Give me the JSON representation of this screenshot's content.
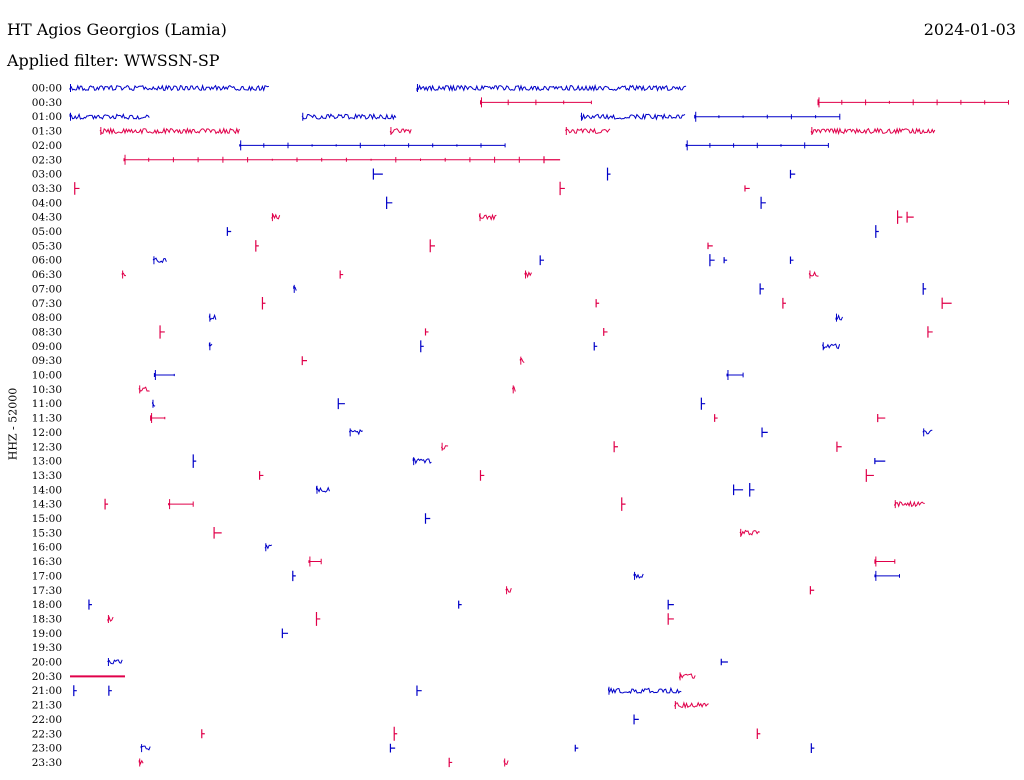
{
  "header": {
    "station": "HT Agios Georgios (Lamia)",
    "date": "2024-01-03",
    "filter": "Applied filter: WWSSN-SP"
  },
  "axis_label": "HHZ - 52000",
  "colors": {
    "even_row": "#0000c8",
    "odd_row": "#e0004a"
  },
  "chart_data": {
    "type": "helicorder",
    "ylabel": "HHZ - 52000",
    "rows": [
      {
        "label": "00:00",
        "events": [
          [
            0,
            0.21,
            "burst"
          ],
          [
            0.366,
            0.651,
            "burst"
          ]
        ]
      },
      {
        "label": "00:30",
        "events": [
          [
            0.433,
            0.55,
            "line"
          ],
          [
            0.789,
            0.99,
            "line"
          ]
        ]
      },
      {
        "label": "01:00",
        "events": [
          [
            0,
            0.085,
            "burst"
          ],
          [
            0.245,
            0.345,
            "burst"
          ],
          [
            0.539,
            0.65,
            "burst"
          ],
          [
            0.659,
            0.812,
            "line"
          ]
        ]
      },
      {
        "label": "01:30",
        "events": [
          [
            0.032,
            0.18,
            "burst"
          ],
          [
            0.338,
            0.36,
            "burst"
          ],
          [
            0.523,
            0.57,
            "burst"
          ],
          [
            0.782,
            0.913,
            "burst"
          ]
        ]
      },
      {
        "label": "02:00",
        "events": [
          [
            0.179,
            0.459,
            "line"
          ],
          [
            0.65,
            0.8,
            "line"
          ]
        ]
      },
      {
        "label": "02:30",
        "events": [
          [
            0.057,
            0.5,
            "line"
          ],
          [
            0.5,
            0.517,
            "spike"
          ]
        ]
      },
      {
        "label": "03:00",
        "events": [
          [
            0.32,
            0.33,
            "spike"
          ],
          [
            0.567,
            0.57,
            "spike"
          ],
          [
            0.76,
            0.765,
            "spike"
          ]
        ]
      },
      {
        "label": "03:30",
        "events": [
          [
            0.005,
            0.01,
            "spike"
          ],
          [
            0.517,
            0.522,
            "spike"
          ],
          [
            0.712,
            0.717,
            "spike"
          ]
        ]
      },
      {
        "label": "04:00",
        "events": [
          [
            0.334,
            0.34,
            "spike"
          ],
          [
            0.729,
            0.734,
            "spike"
          ]
        ]
      },
      {
        "label": "04:30",
        "events": [
          [
            0.213,
            0.222,
            "burst"
          ],
          [
            0.432,
            0.45,
            "burst"
          ],
          [
            0.873,
            0.878,
            "spike"
          ],
          [
            0.883,
            0.89,
            "spike"
          ]
        ]
      },
      {
        "label": "05:00",
        "events": [
          [
            0.166,
            0.17,
            "spike"
          ],
          [
            0.85,
            0.853,
            "spike"
          ]
        ]
      },
      {
        "label": "05:30",
        "events": [
          [
            0.196,
            0.199,
            "spike"
          ],
          [
            0.38,
            0.385,
            "spike"
          ],
          [
            0.673,
            0.678,
            "spike"
          ]
        ]
      },
      {
        "label": "06:00",
        "events": [
          [
            0.088,
            0.103,
            "burst"
          ],
          [
            0.496,
            0.5,
            "spike"
          ],
          [
            0.675,
            0.68,
            "spike"
          ],
          [
            0.69,
            0.693,
            "spike"
          ],
          [
            0.76,
            0.763,
            "spike"
          ]
        ]
      },
      {
        "label": "06:30",
        "events": [
          [
            0.055,
            0.06,
            "burst"
          ],
          [
            0.285,
            0.288,
            "spike"
          ],
          [
            0.48,
            0.487,
            "burst"
          ],
          [
            0.78,
            0.79,
            "burst"
          ]
        ]
      },
      {
        "label": "07:00",
        "events": [
          [
            0.236,
            0.24,
            "burst"
          ],
          [
            0.728,
            0.732,
            "spike"
          ],
          [
            0.9,
            0.903,
            "spike"
          ]
        ]
      },
      {
        "label": "07:30",
        "events": [
          [
            0.203,
            0.206,
            "spike"
          ],
          [
            0.555,
            0.558,
            "spike"
          ],
          [
            0.752,
            0.755,
            "spike"
          ],
          [
            0.92,
            0.93,
            "spike"
          ]
        ]
      },
      {
        "label": "08:00",
        "events": [
          [
            0.147,
            0.155,
            "burst"
          ],
          [
            0.808,
            0.816,
            "burst"
          ]
        ]
      },
      {
        "label": "08:30",
        "events": [
          [
            0.095,
            0.1,
            "spike"
          ],
          [
            0.375,
            0.378,
            "spike"
          ],
          [
            0.563,
            0.567,
            "spike"
          ],
          [
            0.905,
            0.91,
            "spike"
          ]
        ]
      },
      {
        "label": "09:00",
        "events": [
          [
            0.147,
            0.151,
            "burst"
          ],
          [
            0.37,
            0.373,
            "spike"
          ],
          [
            0.553,
            0.556,
            "spike"
          ],
          [
            0.794,
            0.813,
            "burst"
          ]
        ]
      },
      {
        "label": "09:30",
        "events": [
          [
            0.245,
            0.25,
            "spike"
          ],
          [
            0.475,
            0.48,
            "burst"
          ]
        ]
      },
      {
        "label": "10:00",
        "events": [
          [
            0.089,
            0.11,
            "line"
          ],
          [
            0.693,
            0.71,
            "line"
          ]
        ]
      },
      {
        "label": "10:30",
        "events": [
          [
            0.073,
            0.085,
            "burst"
          ],
          [
            0.467,
            0.47,
            "burst"
          ]
        ]
      },
      {
        "label": "11:00",
        "events": [
          [
            0.087,
            0.09,
            "burst"
          ],
          [
            0.283,
            0.29,
            "spike"
          ],
          [
            0.666,
            0.67,
            "spike"
          ]
        ]
      },
      {
        "label": "11:30",
        "events": [
          [
            0.085,
            0.1,
            "line"
          ],
          [
            0.68,
            0.683,
            "spike"
          ],
          [
            0.852,
            0.86,
            "spike"
          ]
        ]
      },
      {
        "label": "12:00",
        "events": [
          [
            0.295,
            0.31,
            "burst"
          ],
          [
            0.73,
            0.736,
            "spike"
          ],
          [
            0.9,
            0.91,
            "burst"
          ]
        ]
      },
      {
        "label": "12:30",
        "events": [
          [
            0.392,
            0.4,
            "burst"
          ],
          [
            0.574,
            0.578,
            "spike"
          ],
          [
            0.809,
            0.814,
            "spike"
          ]
        ]
      },
      {
        "label": "13:00",
        "events": [
          [
            0.13,
            0.133,
            "spike"
          ],
          [
            0.362,
            0.382,
            "burst"
          ],
          [
            0.849,
            0.86,
            "spike"
          ]
        ]
      },
      {
        "label": "13:30",
        "events": [
          [
            0.2,
            0.204,
            "spike"
          ],
          [
            0.433,
            0.437,
            "spike"
          ],
          [
            0.84,
            0.848,
            "spike"
          ]
        ]
      },
      {
        "label": "14:00",
        "events": [
          [
            0.26,
            0.275,
            "burst"
          ],
          [
            0.7,
            0.71,
            "spike"
          ],
          [
            0.717,
            0.722,
            "spike"
          ]
        ]
      },
      {
        "label": "14:30",
        "events": [
          [
            0.037,
            0.04,
            "spike"
          ],
          [
            0.104,
            0.13,
            "line"
          ],
          [
            0.582,
            0.586,
            "spike"
          ],
          [
            0.87,
            0.902,
            "burst"
          ]
        ]
      },
      {
        "label": "15:00",
        "events": [
          [
            0.375,
            0.38,
            "spike"
          ]
        ]
      },
      {
        "label": "15:30",
        "events": [
          [
            0.152,
            0.16,
            "spike"
          ],
          [
            0.707,
            0.728,
            "burst"
          ]
        ]
      },
      {
        "label": "16:00",
        "events": [
          [
            0.206,
            0.214,
            "burst"
          ]
        ]
      },
      {
        "label": "16:30",
        "events": [
          [
            0.252,
            0.265,
            "line"
          ],
          [
            0.849,
            0.87,
            "line"
          ]
        ]
      },
      {
        "label": "17:00",
        "events": [
          [
            0.235,
            0.238,
            "spike"
          ],
          [
            0.595,
            0.605,
            "burst"
          ],
          [
            0.849,
            0.875,
            "line"
          ]
        ]
      },
      {
        "label": "17:30",
        "events": [
          [
            0.46,
            0.466,
            "burst"
          ],
          [
            0.781,
            0.785,
            "spike"
          ]
        ]
      },
      {
        "label": "18:00",
        "events": [
          [
            0.02,
            0.023,
            "spike"
          ],
          [
            0.41,
            0.413,
            "spike"
          ],
          [
            0.631,
            0.637,
            "spike"
          ]
        ]
      },
      {
        "label": "18:30",
        "events": [
          [
            0.04,
            0.046,
            "burst"
          ],
          [
            0.26,
            0.264,
            "spike"
          ],
          [
            0.631,
            0.637,
            "spike"
          ]
        ]
      },
      {
        "label": "19:00",
        "events": [
          [
            0.224,
            0.23,
            "spike"
          ]
        ]
      },
      {
        "label": "19:30",
        "events": []
      },
      {
        "label": "20:00",
        "events": [
          [
            0.04,
            0.056,
            "burst"
          ],
          [
            0.687,
            0.694,
            "spike"
          ]
        ]
      },
      {
        "label": "20:30",
        "events": [
          [
            0,
            0.058,
            "flat"
          ],
          [
            0.643,
            0.66,
            "burst"
          ]
        ]
      },
      {
        "label": "21:00",
        "events": [
          [
            0.004,
            0.006,
            "spike"
          ],
          [
            0.041,
            0.043,
            "spike"
          ],
          [
            0.366,
            0.371,
            "spike"
          ],
          [
            0.568,
            0.645,
            "burst"
          ]
        ]
      },
      {
        "label": "21:30",
        "events": [
          [
            0.638,
            0.675,
            "burst"
          ]
        ]
      },
      {
        "label": "22:00",
        "events": [
          [
            0.595,
            0.6,
            "spike"
          ]
        ]
      },
      {
        "label": "22:30",
        "events": [
          [
            0.139,
            0.142,
            "spike"
          ],
          [
            0.342,
            0.345,
            "spike"
          ],
          [
            0.725,
            0.728,
            "spike"
          ]
        ]
      },
      {
        "label": "23:00",
        "events": [
          [
            0.075,
            0.085,
            "burst"
          ],
          [
            0.338,
            0.343,
            "spike"
          ],
          [
            0.533,
            0.536,
            "spike"
          ],
          [
            0.782,
            0.785,
            "spike"
          ]
        ]
      },
      {
        "label": "23:30",
        "events": [
          [
            0.073,
            0.078,
            "burst"
          ],
          [
            0.4,
            0.402,
            "spike"
          ],
          [
            0.458,
            0.463,
            "burst"
          ]
        ]
      }
    ]
  }
}
